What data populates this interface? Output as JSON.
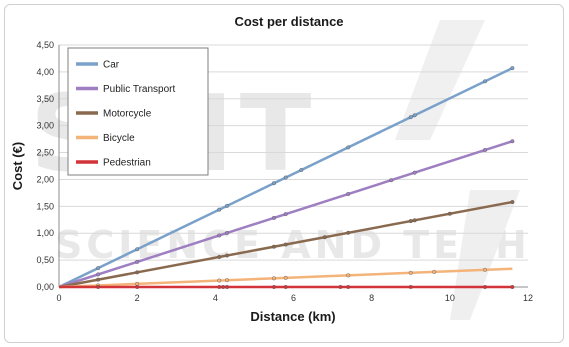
{
  "chart_data": {
    "type": "line",
    "title": "Cost per distance",
    "xlabel": "Distance (km)",
    "ylabel": "Cost (€)",
    "xlim": [
      0,
      12
    ],
    "ylim": [
      0,
      4.5
    ],
    "x_ticks": [
      "0",
      "2",
      "4",
      "6",
      "8",
      "10",
      "12"
    ],
    "y_ticks": [
      "0,00",
      "0,50",
      "1,00",
      "1,50",
      "2,00",
      "2,50",
      "3,00",
      "3,50",
      "4,00",
      "4,50"
    ],
    "grid": "horizontal",
    "legend_position": "top-left",
    "series": [
      {
        "name": "Car",
        "color": "#7aa1c9",
        "x": [
          0,
          11.6
        ],
        "y": [
          0,
          4.07
        ],
        "markers_x": [
          1,
          2,
          4.1,
          4.3,
          5.5,
          5.8,
          6.2,
          7.4,
          9,
          9.1,
          10.9,
          11.6
        ]
      },
      {
        "name": "Public Transport",
        "color": "#9e7fc1",
        "x": [
          0,
          11.6
        ],
        "y": [
          0,
          2.71
        ],
        "markers_x": [
          1,
          2,
          4.1,
          4.3,
          5.5,
          5.8,
          7.4,
          8.5,
          9.1,
          10.9,
          11.6
        ]
      },
      {
        "name": "Motorcycle",
        "color": "#8a6a4f",
        "x": [
          0,
          11.6
        ],
        "y": [
          0,
          1.58
        ],
        "markers_x": [
          1,
          2,
          4.1,
          4.3,
          5.5,
          5.8,
          6.8,
          7.4,
          9,
          9.1,
          10,
          11.6
        ]
      },
      {
        "name": "Bicycle",
        "color": "#f3b379",
        "x": [
          0,
          11.6
        ],
        "y": [
          0,
          0.34
        ],
        "markers_x": [
          1,
          2,
          4.1,
          4.3,
          5.5,
          5.8,
          7.4,
          9,
          9.6,
          10.9
        ]
      },
      {
        "name": "Pedestrian",
        "color": "#d2343a",
        "x": [
          0,
          11.6
        ],
        "y": [
          0,
          0
        ],
        "markers_x": [
          1,
          2,
          4.1,
          4.2,
          4.3,
          5.5,
          5.8,
          7.2,
          7.4,
          9,
          10.9,
          11.6
        ]
      }
    ]
  }
}
